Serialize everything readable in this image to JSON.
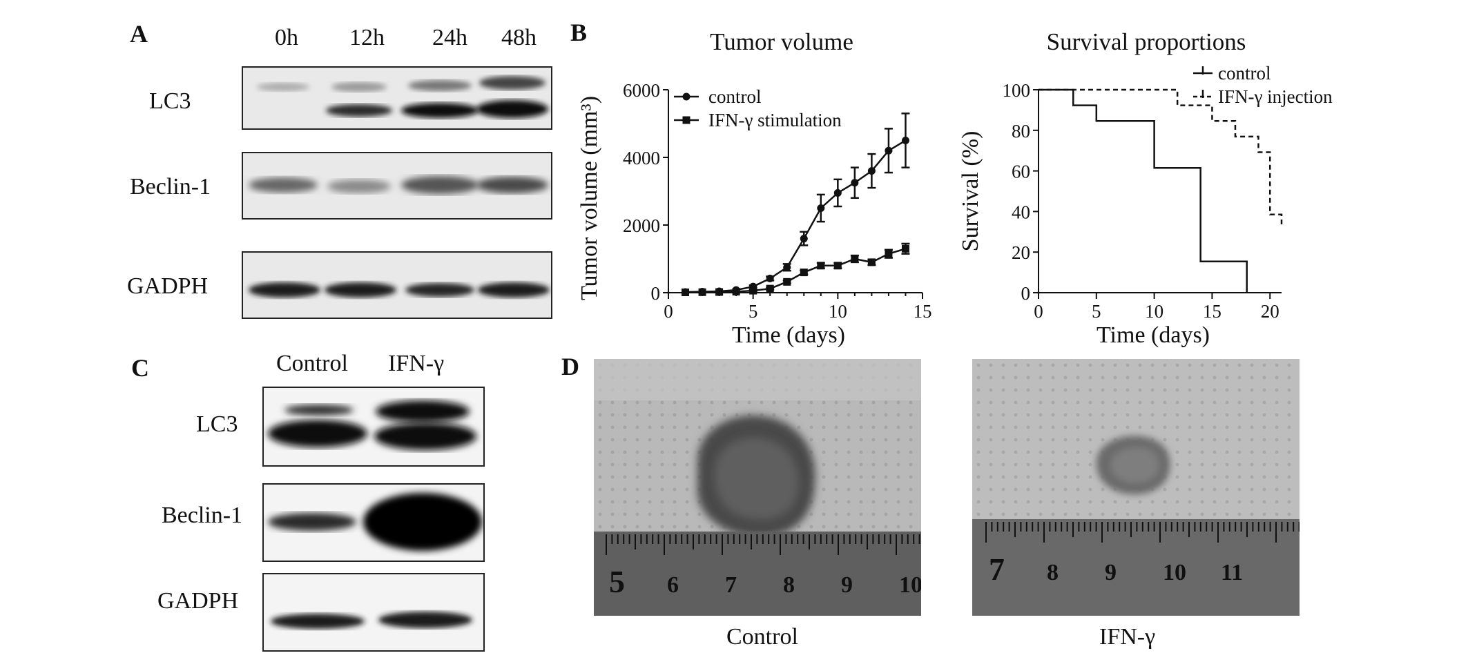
{
  "panel_letters": {
    "a": "A",
    "b": "B",
    "c": "C",
    "d": "D"
  },
  "panel_a": {
    "timepoints": [
      "0h",
      "12h",
      "24h",
      "48h"
    ],
    "rows": [
      "LC3",
      "Beclin-1",
      "GADPH"
    ]
  },
  "panel_c": {
    "conditions": [
      "Control",
      "IFN-γ"
    ],
    "rows": [
      "LC3",
      "Beclin-1",
      "GADPH"
    ]
  },
  "panel_d": {
    "captions": [
      "Control",
      "IFN-γ"
    ],
    "ruler_control": [
      "5",
      "6",
      "7",
      "8",
      "9",
      "10"
    ],
    "ruler_ifn": [
      "7",
      "8",
      "9",
      "10",
      "11"
    ]
  },
  "colors": {
    "ink": "#111111",
    "band": "#1a1a1a",
    "blot_bg": "#e9e9e9",
    "photo_bg": "#b7b7b7"
  },
  "chart_data": [
    {
      "type": "line",
      "title": "Tumor volume",
      "xlabel": "Time (days)",
      "ylabel": "Tumor volume (mm³)",
      "xlim": [
        0,
        15
      ],
      "ylim": [
        0,
        6000
      ],
      "xticks": [
        0,
        5,
        10,
        15
      ],
      "yticks": [
        0,
        2000,
        4000,
        6000
      ],
      "legend_position": "top-left",
      "series": [
        {
          "name": "control",
          "marker": "circle",
          "x": [
            1,
            2,
            3,
            4,
            5,
            6,
            7,
            8,
            9,
            10,
            11,
            12,
            13,
            14
          ],
          "y": [
            20,
            30,
            40,
            80,
            180,
            420,
            750,
            1600,
            2500,
            2950,
            3250,
            3600,
            4200,
            4500
          ],
          "error": [
            0,
            0,
            0,
            0,
            40,
            60,
            100,
            200,
            400,
            400,
            450,
            500,
            650,
            800
          ]
        },
        {
          "name": "IFN-γ stimulation",
          "marker": "square",
          "x": [
            1,
            2,
            3,
            4,
            5,
            6,
            7,
            8,
            9,
            10,
            11,
            12,
            13,
            14
          ],
          "y": [
            10,
            15,
            20,
            30,
            60,
            120,
            320,
            600,
            800,
            800,
            1000,
            900,
            1150,
            1300
          ],
          "error": [
            0,
            0,
            0,
            0,
            20,
            30,
            40,
            60,
            80,
            80,
            100,
            80,
            120,
            150
          ]
        }
      ]
    },
    {
      "type": "line",
      "step": true,
      "title": "Survival proportions",
      "xlabel": "Time (days)",
      "ylabel": "Survival (%)",
      "xlim": [
        0,
        21
      ],
      "ylim": [
        0,
        100
      ],
      "xticks": [
        0,
        5,
        10,
        15,
        20
      ],
      "yticks": [
        0,
        20,
        40,
        60,
        80,
        100
      ],
      "legend_position": "top-right",
      "series": [
        {
          "name": "control",
          "style": "solid",
          "x": [
            0,
            3,
            5,
            10,
            14,
            18
          ],
          "y": [
            100,
            92.3,
            84.6,
            61.5,
            15.4,
            0
          ]
        },
        {
          "name": "IFN-γ injection",
          "style": "dashed",
          "x": [
            0,
            12,
            15,
            17,
            19,
            20,
            21
          ],
          "y": [
            100,
            92.3,
            84.6,
            76.9,
            69.2,
            38.5,
            33
          ]
        }
      ]
    }
  ]
}
